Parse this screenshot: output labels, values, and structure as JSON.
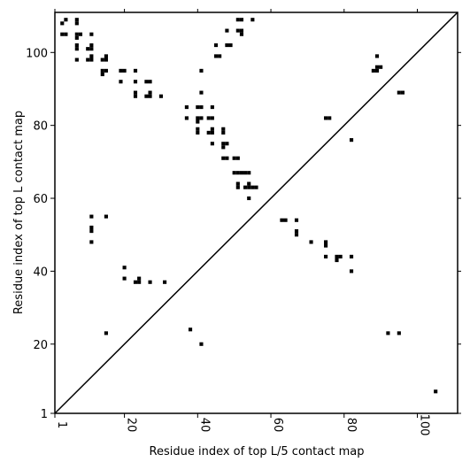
{
  "chart_data": {
    "type": "scatter",
    "xlabel": "Residue index of top L/5 contact map",
    "ylabel": "Residue index of top L contact map",
    "xlim": [
      1,
      111
    ],
    "ylim": [
      1,
      111
    ],
    "x_ticks": [
      1,
      20,
      40,
      60,
      80,
      100
    ],
    "y_ticks": [
      1,
      20,
      40,
      60,
      80,
      100
    ],
    "diagonal": true,
    "marker": "square",
    "color": "#000000",
    "top_L_contacts": [
      [
        3,
        108
      ],
      [
        3,
        105
      ],
      [
        4,
        109
      ],
      [
        4,
        105
      ],
      [
        7,
        109
      ],
      [
        7,
        108
      ],
      [
        7,
        105
      ],
      [
        7,
        104
      ],
      [
        7,
        102
      ],
      [
        7,
        101
      ],
      [
        7,
        98
      ],
      [
        8,
        105
      ],
      [
        10,
        101
      ],
      [
        10,
        98
      ],
      [
        11,
        105
      ],
      [
        11,
        102
      ],
      [
        11,
        101
      ],
      [
        11,
        99
      ],
      [
        11,
        98
      ],
      [
        14,
        98
      ],
      [
        14,
        95
      ],
      [
        14,
        94
      ],
      [
        15,
        99
      ],
      [
        15,
        98
      ],
      [
        15,
        95
      ],
      [
        19,
        95
      ],
      [
        19,
        92
      ],
      [
        20,
        95
      ],
      [
        23,
        95
      ],
      [
        23,
        92
      ],
      [
        23,
        89
      ],
      [
        23,
        88
      ],
      [
        26,
        92
      ],
      [
        26,
        88
      ],
      [
        27,
        92
      ],
      [
        27,
        89
      ],
      [
        27,
        88
      ],
      [
        30,
        88
      ],
      [
        37,
        85
      ],
      [
        37,
        82
      ],
      [
        40,
        85
      ],
      [
        40,
        82
      ],
      [
        40,
        81
      ],
      [
        40,
        79
      ],
      [
        40,
        78
      ],
      [
        41,
        95
      ],
      [
        41,
        89
      ],
      [
        41,
        85
      ],
      [
        41,
        82
      ],
      [
        43,
        82
      ],
      [
        43,
        78
      ],
      [
        44,
        85
      ],
      [
        44,
        82
      ],
      [
        44,
        79
      ],
      [
        44,
        78
      ],
      [
        44,
        75
      ],
      [
        45,
        102
      ],
      [
        45,
        99
      ],
      [
        46,
        99
      ],
      [
        47,
        79
      ],
      [
        47,
        78
      ],
      [
        47,
        75
      ],
      [
        47,
        74
      ],
      [
        47,
        71
      ],
      [
        48,
        106
      ],
      [
        48,
        102
      ],
      [
        48,
        75
      ],
      [
        48,
        71
      ],
      [
        49,
        102
      ],
      [
        50,
        71
      ],
      [
        50,
        67
      ],
      [
        51,
        109
      ],
      [
        51,
        106
      ],
      [
        51,
        71
      ],
      [
        51,
        67
      ],
      [
        51,
        64
      ],
      [
        51,
        63
      ],
      [
        52,
        109
      ],
      [
        52,
        106
      ],
      [
        52,
        105
      ],
      [
        52,
        67
      ],
      [
        53,
        67
      ],
      [
        53,
        63
      ],
      [
        54,
        67
      ],
      [
        54,
        64
      ],
      [
        54,
        63
      ],
      [
        54,
        60
      ],
      [
        55,
        109
      ],
      [
        55,
        63
      ],
      [
        56,
        63
      ]
    ],
    "top_L5_contacts": [
      [
        11,
        55
      ],
      [
        11,
        52
      ],
      [
        11,
        51
      ],
      [
        11,
        48
      ],
      [
        15,
        55
      ],
      [
        15,
        23
      ],
      [
        20,
        41
      ],
      [
        20,
        38
      ],
      [
        23,
        37
      ],
      [
        24,
        38
      ],
      [
        24,
        37
      ],
      [
        27,
        37
      ],
      [
        31,
        37
      ],
      [
        38,
        24
      ],
      [
        41,
        20
      ],
      [
        63,
        54
      ],
      [
        64,
        54
      ],
      [
        67,
        54
      ],
      [
        67,
        51
      ],
      [
        67,
        50
      ],
      [
        71,
        48
      ],
      [
        75,
        48
      ],
      [
        75,
        47
      ],
      [
        75,
        44
      ],
      [
        75,
        82
      ],
      [
        76,
        82
      ],
      [
        78,
        44
      ],
      [
        78,
        43
      ],
      [
        79,
        44
      ],
      [
        82,
        76
      ],
      [
        82,
        44
      ],
      [
        82,
        40
      ],
      [
        88,
        95
      ],
      [
        89,
        99
      ],
      [
        89,
        96
      ],
      [
        89,
        95
      ],
      [
        90,
        96
      ],
      [
        92,
        23
      ],
      [
        95,
        89
      ],
      [
        96,
        89
      ],
      [
        95,
        23
      ],
      [
        105,
        7
      ]
    ]
  }
}
